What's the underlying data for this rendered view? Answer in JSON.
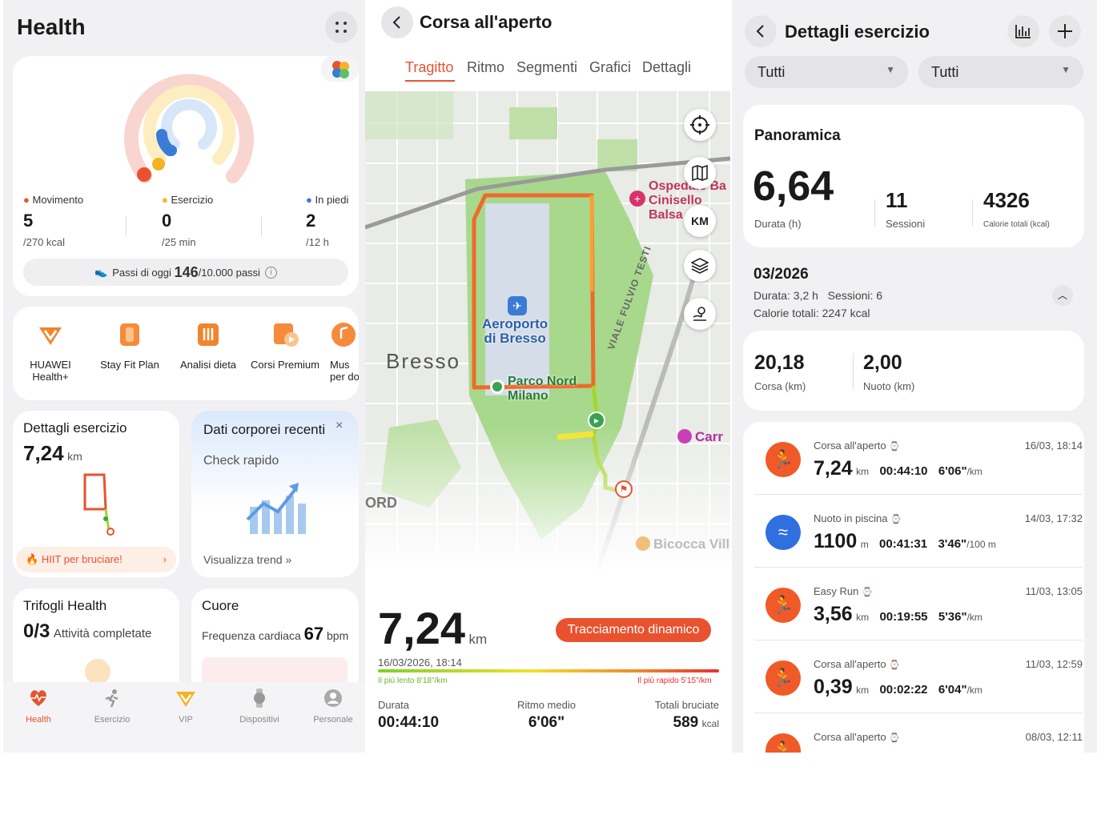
{
  "p1": {
    "title": "Health",
    "ring": {
      "mov_label": "Movimento",
      "mov_val": "5",
      "mov_goal": "/270 kcal",
      "ex_label": "Esercizio",
      "ex_val": "0",
      "ex_goal": "/25 min",
      "st_label": "In piedi",
      "st_val": "2",
      "st_goal": "/12 h"
    },
    "steps": {
      "label": "Passi di oggi",
      "value": "146",
      "goal": "/10.000 passi"
    },
    "services": [
      {
        "label": "HUAWEI Health+"
      },
      {
        "label": "Stay Fit Plan"
      },
      {
        "label": "Analisi dieta"
      },
      {
        "label": "Corsi Premium"
      },
      {
        "label": "Mus per do"
      }
    ],
    "ex_card": {
      "title": "Dettagli esercizio",
      "value": "7,24",
      "unit": "km",
      "cta": "HIIT per bruciare!"
    },
    "body_card": {
      "title": "Dati corporei recenti",
      "sub": "Check rapido",
      "link": "Visualizza trend"
    },
    "clover": {
      "title": "Trifogli Health",
      "value": "0/3",
      "sub": "Attività completate"
    },
    "heart": {
      "title": "Cuore",
      "sub": "Frequenza cardiaca",
      "value": "67",
      "unit": "bpm"
    },
    "nav": [
      {
        "label": "Health"
      },
      {
        "label": "Esercizio"
      },
      {
        "label": "VIP"
      },
      {
        "label": "Dispositivi"
      },
      {
        "label": "Personale"
      }
    ],
    "colors": {
      "accent": "#e8522e",
      "blue": "#3a7bd5",
      "yellow": "#f5b324"
    }
  },
  "p2": {
    "title": "Corsa all'aperto",
    "tabs": [
      "Tragitto",
      "Ritmo",
      "Segmenti",
      "Grafici",
      "Dettagli"
    ],
    "map": {
      "hospital": "Ospedale Bassini Cinisello Balsamo",
      "hospital_l1": "Ospedale Ba",
      "hospital_l2": "Cinisello",
      "hospital_l3": "Balsa",
      "airport_l1": "Aeroporto",
      "airport_l2": "di Bresso",
      "bresso": "Bresso",
      "park_l1": "Parco Nord",
      "park_l2": "Milano",
      "street": "VIALE FULVIO TESTI",
      "carr": "Carr",
      "bicocca": "Bicocca Vill",
      "ord": "ORD",
      "km": "KM"
    },
    "distance": "7,24",
    "unit": "km",
    "date": "16/03/2026, 18:14",
    "dyn": "Tracciamento dinamico",
    "slow": "Il più lento 8'18\"/km",
    "fast": "Il più rapido 5'15\"/km",
    "stats": [
      {
        "label": "Durata",
        "value": "00:44:10"
      },
      {
        "label": "Ritmo medio",
        "value": "6'06\""
      },
      {
        "label": "Totali bruciate",
        "value": "589",
        "unit": "kcal"
      }
    ]
  },
  "p3": {
    "title": "Dettagli esercizio",
    "filters": [
      "Tutti",
      "Tutti"
    ],
    "overview": {
      "title": "Panoramica",
      "dur": "6,64",
      "dur_label": "Durata (h)",
      "sess": "11",
      "sess_label": "Sessioni",
      "cal": "4326",
      "cal_label": "Calorie totali (kcal)"
    },
    "month": {
      "title": "03/2026",
      "line1": "Durata: 3,2 h   Sessioni: 6",
      "line2": "Calorie totali: 2247 kcal"
    },
    "dist": {
      "run": "20,18",
      "run_label": "Corsa (km)",
      "swim": "2,00",
      "swim_label": "Nuoto (km)"
    },
    "workouts": [
      {
        "type": "Corsa all'aperto",
        "date": "16/03, 18:14",
        "value": "7,24",
        "unit": "km",
        "time": "00:44:10",
        "pace": "6'06\"",
        "pace_unit": "/km"
      },
      {
        "type": "Nuoto in piscina",
        "date": "14/03, 17:32",
        "value": "1100",
        "unit": "m",
        "time": "00:41:31",
        "pace": "3'46\"",
        "pace_unit": "/100 m"
      },
      {
        "type": "Easy Run",
        "date": "11/03, 13:05",
        "value": "3,56",
        "unit": "km",
        "time": "00:19:55",
        "pace": "5'36\"",
        "pace_unit": "/km"
      },
      {
        "type": "Corsa all'aperto",
        "date": "11/03, 12:59",
        "value": "0,39",
        "unit": "km",
        "time": "00:02:22",
        "pace": "6'04\"",
        "pace_unit": "/km"
      },
      {
        "type": "Corsa all'aperto",
        "date": "08/03, 12:11",
        "value": "",
        "unit": "",
        "time": "",
        "pace": "",
        "pace_unit": ""
      }
    ]
  }
}
